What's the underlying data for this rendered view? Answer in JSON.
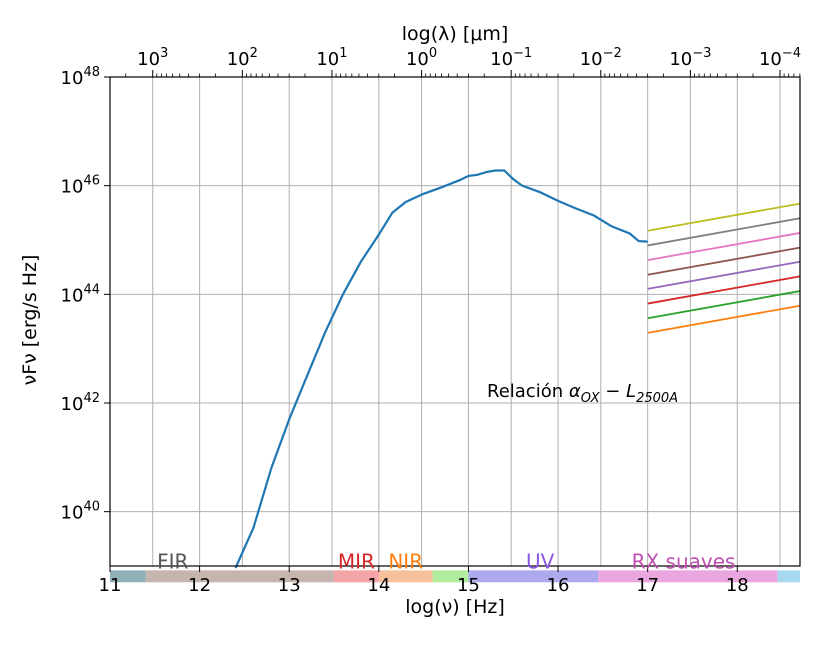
{
  "chart_data": {
    "type": "line",
    "title": "",
    "xlabel": "log(ν) [Hz]",
    "ylabel": "νFν [erg/s Hz]",
    "top_xlabel": "log(λ) [μm]",
    "xlim": [
      11,
      18.7
    ],
    "ylim_log10": [
      39,
      48
    ],
    "y_scale": "log",
    "grid": true,
    "x_ticks": [
      "11",
      "12",
      "13",
      "14",
      "15",
      "16",
      "17",
      "18"
    ],
    "x_tick_values": [
      11,
      12,
      13,
      14,
      15,
      16,
      17,
      18
    ],
    "y_ticks": [
      {
        "base": "10",
        "exp": "40",
        "value": 40
      },
      {
        "base": "10",
        "exp": "42",
        "value": 42
      },
      {
        "base": "10",
        "exp": "44",
        "value": 44
      },
      {
        "base": "10",
        "exp": "46",
        "value": 46
      },
      {
        "base": "10",
        "exp": "48",
        "value": 48
      }
    ],
    "top_ticks": [
      {
        "base": "10",
        "exp": "3",
        "log_lambda_um": 3
      },
      {
        "base": "10",
        "exp": "2",
        "log_lambda_um": 2
      },
      {
        "base": "10",
        "exp": "1",
        "log_lambda_um": 1
      },
      {
        "base": "10",
        "exp": "0",
        "log_lambda_um": 0
      },
      {
        "base": "10",
        "exp": "−1",
        "log_lambda_um": -1
      },
      {
        "base": "10",
        "exp": "−2",
        "log_lambda_um": -2
      },
      {
        "base": "10",
        "exp": "−3",
        "log_lambda_um": -3
      },
      {
        "base": "10",
        "exp": "−4",
        "log_lambda_um": -4
      }
    ],
    "sed_curve": {
      "color": "#1f77b4",
      "points": [
        [
          12.4,
          38.6
        ],
        [
          12.6,
          39.7
        ],
        [
          12.8,
          40.8
        ],
        [
          13.0,
          41.7
        ],
        [
          13.2,
          42.5
        ],
        [
          13.4,
          43.3
        ],
        [
          13.6,
          44.0
        ],
        [
          13.8,
          44.6
        ],
        [
          14.0,
          45.1
        ],
        [
          14.15,
          45.5
        ],
        [
          14.3,
          45.7
        ],
        [
          14.5,
          45.85
        ],
        [
          14.7,
          45.97
        ],
        [
          14.9,
          46.1
        ],
        [
          15.0,
          46.18
        ],
        [
          15.1,
          46.2
        ],
        [
          15.2,
          46.25
        ],
        [
          15.3,
          46.28
        ],
        [
          15.4,
          46.28
        ],
        [
          15.5,
          46.12
        ],
        [
          15.6,
          46.0
        ],
        [
          15.8,
          45.88
        ],
        [
          16.0,
          45.72
        ],
        [
          16.2,
          45.58
        ],
        [
          16.4,
          45.45
        ],
        [
          16.6,
          45.25
        ],
        [
          16.8,
          45.12
        ],
        [
          16.9,
          44.98
        ],
        [
          17.0,
          44.97
        ]
      ]
    },
    "series": [
      {
        "color": "#bcbd22",
        "x": [
          17.0,
          18.7
        ],
        "y": [
          45.17,
          45.67
        ]
      },
      {
        "color": "#7f7f7f",
        "x": [
          17.0,
          18.7
        ],
        "y": [
          44.9,
          45.4
        ]
      },
      {
        "color": "#e377c2",
        "x": [
          17.0,
          18.7
        ],
        "y": [
          44.63,
          45.13
        ]
      },
      {
        "color": "#8c564b",
        "x": [
          17.0,
          18.7
        ],
        "y": [
          44.36,
          44.86
        ]
      },
      {
        "color": "#9467bd",
        "x": [
          17.0,
          18.7
        ],
        "y": [
          44.1,
          44.6
        ]
      },
      {
        "color": "#d62728",
        "x": [
          17.0,
          18.7
        ],
        "y": [
          43.83,
          44.33
        ]
      },
      {
        "color": "#2ca02c",
        "x": [
          17.0,
          18.7
        ],
        "y": [
          43.56,
          44.06
        ]
      },
      {
        "color": "#ff7f0e",
        "x": [
          17.0,
          18.7
        ],
        "y": [
          43.29,
          43.79
        ]
      }
    ],
    "bands": [
      {
        "x0": 11.0,
        "x1": 11.4,
        "color": "#8fb0b8"
      },
      {
        "x0": 11.4,
        "x1": 13.5,
        "color": "#c6b4ae"
      },
      {
        "x0": 13.5,
        "x1": 14.0,
        "color": "#f4a3a7"
      },
      {
        "x0": 14.0,
        "x1": 14.6,
        "color": "#f6c09a"
      },
      {
        "x0": 14.6,
        "x1": 15.0,
        "color": "#b2ec9f"
      },
      {
        "x0": 15.0,
        "x1": 16.45,
        "color": "#aca9ec"
      },
      {
        "x0": 16.45,
        "x1": 18.45,
        "color": "#eaa7df"
      },
      {
        "x0": 18.45,
        "x1": 18.7,
        "color": "#a8d8f0"
      }
    ],
    "band_labels": [
      {
        "text": "FIR",
        "x": 11.7,
        "color": "#555555"
      },
      {
        "text": "MIR",
        "x": 13.75,
        "color": "#d62728"
      },
      {
        "text": "NIR",
        "x": 14.3,
        "color": "#ff7f0e"
      },
      {
        "text": "UV",
        "x": 15.8,
        "color": "#8a56e2"
      },
      {
        "text": "RX suaves",
        "x": 17.4,
        "color": "#c04fb0"
      }
    ],
    "annotation": {
      "prefix": "Relación ",
      "alpha": "α",
      "alpha_sub": "OX",
      "minus": " − ",
      "L": "L",
      "L_sub": "2500A"
    }
  }
}
